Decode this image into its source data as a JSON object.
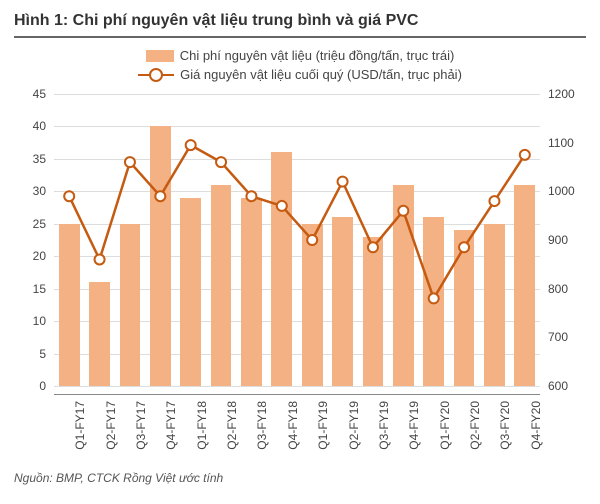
{
  "chart": {
    "title": "Hình 1: Chi phí nguyên vật liệu trung bình và giá PVC",
    "legend": {
      "bar_label": "Chi phí nguyên vật liệu (triệu đồng/tấn, trục trái)",
      "line_label": "Giá nguyên vật liệu cuối quý (USD/tấn, trục phải)"
    },
    "source": "Nguồn: BMP, CTCK Rồng Việt ước tính",
    "type": "combo-bar-line",
    "colors": {
      "bar_fill": "#f4b183",
      "line_stroke": "#c55a11",
      "marker_fill": "#ffffff",
      "grid": "#dddddd",
      "axis_text": "#444444",
      "title_text": "#333333",
      "background": "#ffffff",
      "underline": "#666666"
    },
    "fontsize": {
      "title": 16,
      "legend": 13,
      "tick": 12,
      "source": 12
    },
    "categories": [
      "Q1-FY17",
      "Q2-FY17",
      "Q3-FY17",
      "Q4-FY17",
      "Q1-FY18",
      "Q2-FY18",
      "Q3-FY18",
      "Q4-FY18",
      "Q1-FY19",
      "Q2-FY19",
      "Q3-FY19",
      "Q4-FY19",
      "Q1-FY20",
      "Q2-FY20",
      "Q3-FY20",
      "Q4-FY20"
    ],
    "bar_values": [
      25,
      16,
      25,
      40,
      29,
      31,
      29,
      36,
      25,
      26,
      23,
      31,
      26,
      24,
      25,
      31
    ],
    "line_values": [
      990,
      860,
      1060,
      990,
      1095,
      1060,
      990,
      970,
      900,
      1020,
      885,
      960,
      780,
      885,
      980,
      1075
    ],
    "left_axis": {
      "min": 0,
      "max": 45,
      "step": 5
    },
    "right_axis": {
      "min": 600,
      "max": 1200,
      "step": 100
    },
    "bar_width_ratio": 0.68,
    "line_width": 2.5,
    "marker_radius": 5
  }
}
